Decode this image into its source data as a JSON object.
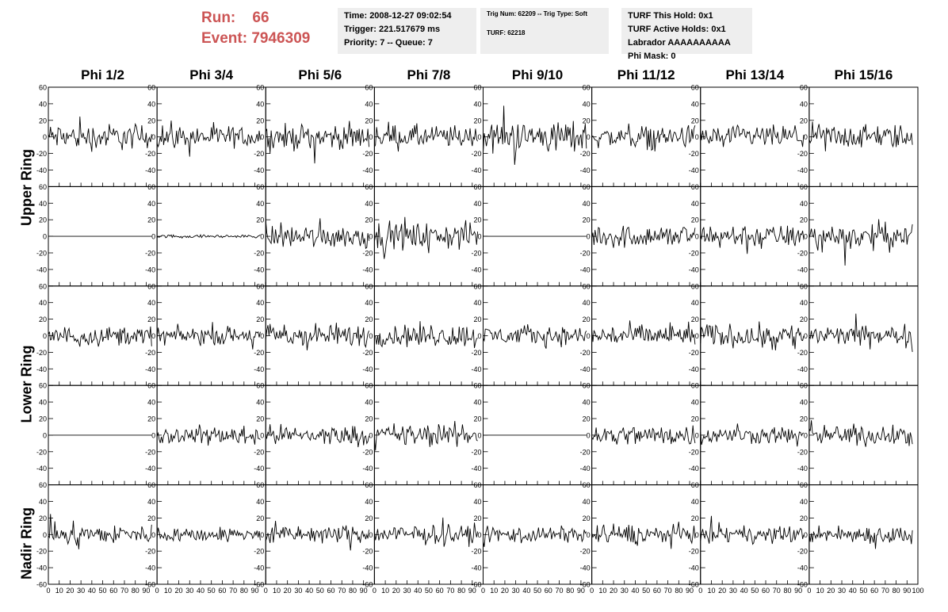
{
  "header": {
    "run_label": "Run:",
    "run_value": "66",
    "event_label": "Event:",
    "event_value": "7946309"
  },
  "info_time": {
    "line1": "Time: 2008-12-27 09:02:54",
    "line2": "Trigger: 221.517679 ms",
    "line3": "Priority: 7 -- Queue: 7"
  },
  "info_trig": {
    "line1": "Trig Num: 62209 -- Trig Type: Soft",
    "line2": "TURF: 62218"
  },
  "info_turf": {
    "line1": "TURF This Hold: 0x1",
    "line2": "TURF Active Holds: 0x1",
    "line3": "Labrador AAAAAAAAAA",
    "line4": "Phi Mask: 0"
  },
  "ring_labels": {
    "upper": "Upper Ring",
    "lower": "Lower Ring",
    "nadir": "Nadir Ring"
  },
  "chart_data": {
    "type": "line",
    "columns": [
      "Phi 1/2",
      "Phi 3/4",
      "Phi 5/6",
      "Phi 7/8",
      "Phi 9/10",
      "Phi 11/12",
      "Phi 13/14",
      "Phi 15/16"
    ],
    "x_range": [
      0,
      100
    ],
    "y_range": [
      -60,
      60
    ],
    "y_ticks": [
      -60,
      -40,
      -20,
      0,
      20,
      40,
      60
    ],
    "x_ticks": [
      0,
      10,
      20,
      30,
      40,
      50,
      60,
      70,
      80,
      90,
      100
    ],
    "samples": 96,
    "panel_amplitudes": [
      [
        18,
        15,
        17,
        16,
        22,
        15,
        15,
        17
      ],
      [
        0,
        2,
        16,
        18,
        0,
        16,
        15,
        17
      ],
      [
        13,
        12,
        16,
        16,
        13,
        15,
        16,
        14
      ],
      [
        0,
        12,
        13,
        16,
        0,
        14,
        12,
        14
      ],
      [
        14,
        10,
        12,
        13,
        11,
        14,
        11,
        12
      ]
    ]
  }
}
